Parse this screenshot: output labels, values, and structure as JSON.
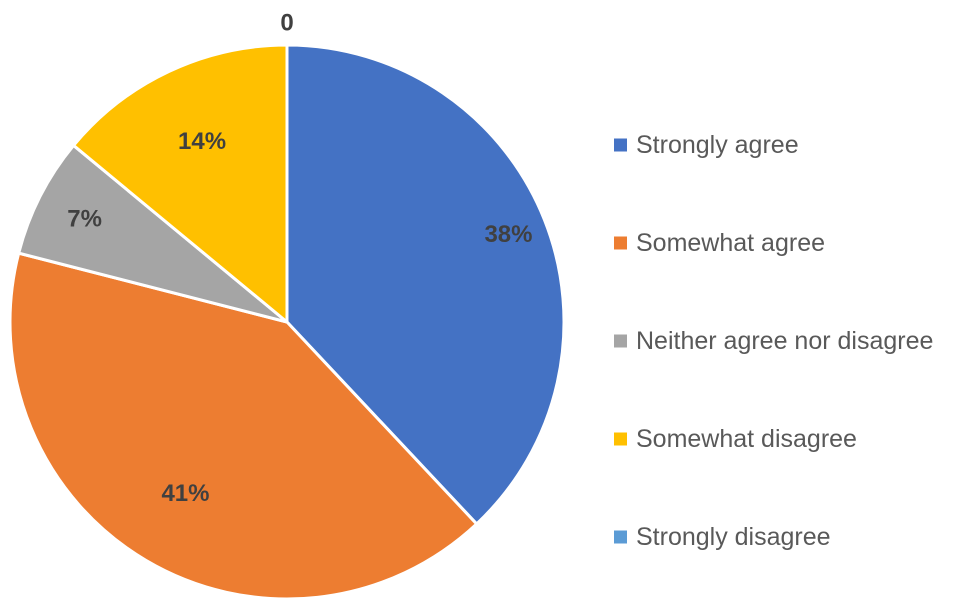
{
  "chart_data": {
    "type": "pie",
    "categories": [
      "Strongly agree",
      "Somewhat agree",
      "Neither agree nor disagree",
      "Somewhat disagree",
      "Strongly disagree"
    ],
    "values": [
      38,
      41,
      7,
      14,
      0
    ],
    "data_labels": [
      "38%",
      "41%",
      "7%",
      "14%",
      "0"
    ],
    "colors": [
      "#4472C4",
      "#ED7D31",
      "#A5A5A5",
      "#FFC000",
      "#5B9BD5"
    ],
    "legend_position": "right",
    "start_angle": "top, clockwise"
  }
}
